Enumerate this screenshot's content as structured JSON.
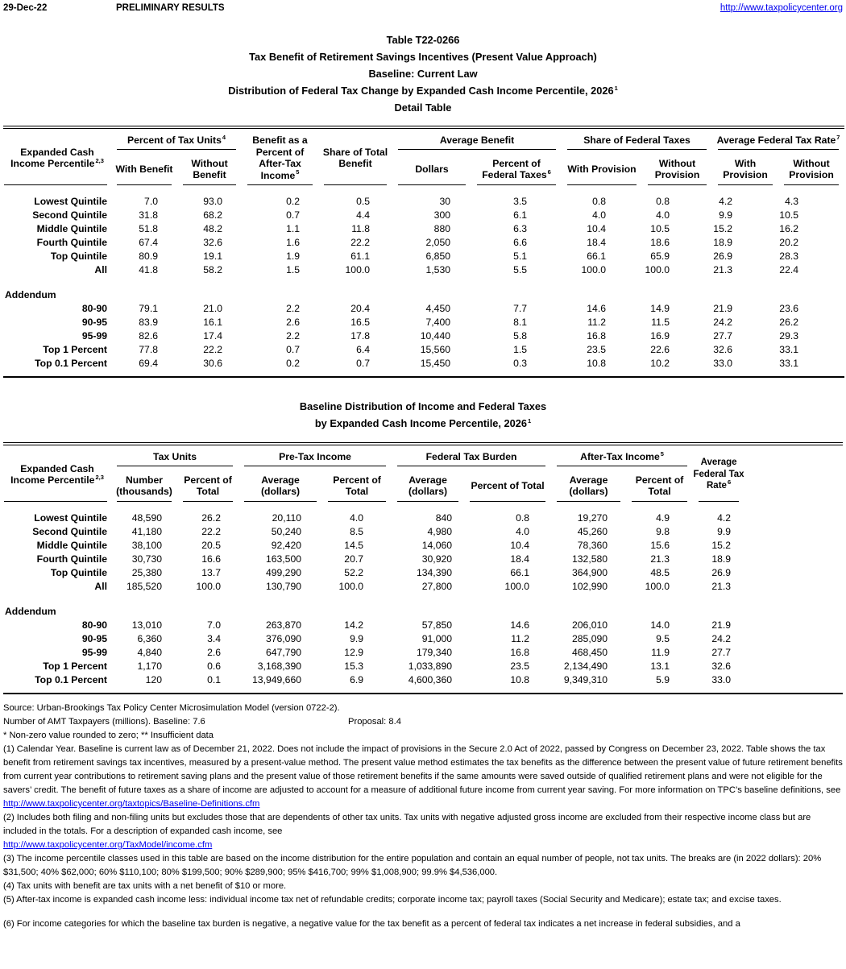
{
  "meta": {
    "date": "29-Dec-22",
    "status": "PRELIMINARY RESULTS",
    "site_link": "http://www.taxpolicycenter.org"
  },
  "titles": {
    "line1": "Table T22-0266",
    "line2": "Tax Benefit of Retirement Savings Incentives (Present Value Approach)",
    "line3": "Baseline: Current Law",
    "line4": "Distribution of Federal Tax Change by Expanded Cash Income Percentile, 2026",
    "line4_sup": "1",
    "line5": "Detail Table"
  },
  "table1": {
    "headers": {
      "percentile": "Expanded Cash Income Percentile",
      "percentile_sup": "2,3",
      "pct_tax_units": "Percent of Tax Units",
      "pct_tax_units_sup": "4",
      "with_benefit": "With Benefit",
      "without_benefit": "Without Benefit",
      "benefit_pct_ati": "Benefit as a Percent of After-Tax Income",
      "benefit_pct_ati_sup": "5",
      "share_total_benefit": "Share of Total Benefit",
      "avg_benefit": "Average Benefit",
      "dollars": "Dollars",
      "pct_federal_taxes": "Percent of Federal Taxes",
      "pct_federal_taxes_sup": "6",
      "share_federal_taxes": "Share of Federal Taxes",
      "with_provision_a": "With Provision",
      "without_provision_a": "Without Provision",
      "avg_federal_tax_rate": "Average Federal Tax Rate",
      "avg_federal_tax_rate_sup": "7",
      "with_provision_b": "With Provision",
      "without_provision_b": "Without Provision"
    },
    "rows": [
      [
        "Lowest Quintile",
        "7.0",
        "93.0",
        "0.2",
        "0.5",
        "30",
        "3.5",
        "0.8",
        "0.8",
        "4.2",
        "4.3"
      ],
      [
        "Second Quintile",
        "31.8",
        "68.2",
        "0.7",
        "4.4",
        "300",
        "6.1",
        "4.0",
        "4.0",
        "9.9",
        "10.5"
      ],
      [
        "Middle Quintile",
        "51.8",
        "48.2",
        "1.1",
        "11.8",
        "880",
        "6.3",
        "10.4",
        "10.5",
        "15.2",
        "16.2"
      ],
      [
        "Fourth Quintile",
        "67.4",
        "32.6",
        "1.6",
        "22.2",
        "2,050",
        "6.6",
        "18.4",
        "18.6",
        "18.9",
        "20.2"
      ],
      [
        "Top Quintile",
        "80.9",
        "19.1",
        "1.9",
        "61.1",
        "6,850",
        "5.1",
        "66.1",
        "65.9",
        "26.9",
        "28.3"
      ],
      [
        "All",
        "41.8",
        "58.2",
        "1.5",
        "100.0",
        "1,530",
        "5.5",
        "100.0",
        "100.0",
        "21.3",
        "22.4"
      ]
    ],
    "addendum_label": "Addendum",
    "addendum_rows": [
      [
        "80-90",
        "79.1",
        "21.0",
        "2.2",
        "20.4",
        "4,450",
        "7.7",
        "14.6",
        "14.9",
        "21.9",
        "23.6"
      ],
      [
        "90-95",
        "83.9",
        "16.1",
        "2.6",
        "16.5",
        "7,400",
        "8.1",
        "11.2",
        "11.5",
        "24.2",
        "26.2"
      ],
      [
        "95-99",
        "82.6",
        "17.4",
        "2.2",
        "17.8",
        "10,440",
        "5.8",
        "16.8",
        "16.9",
        "27.7",
        "29.3"
      ],
      [
        "Top 1 Percent",
        "77.8",
        "22.2",
        "0.7",
        "6.4",
        "15,560",
        "1.5",
        "23.5",
        "22.6",
        "32.6",
        "33.1"
      ],
      [
        "Top 0.1 Percent",
        "69.4",
        "30.6",
        "0.2",
        "0.7",
        "15,450",
        "0.3",
        "10.8",
        "10.2",
        "33.0",
        "33.1"
      ]
    ]
  },
  "table2": {
    "title1": "Baseline Distribution of Income and Federal Taxes",
    "title2": "by Expanded Cash Income Percentile, 2026",
    "title2_sup": "1",
    "headers": {
      "percentile": "Expanded Cash Income Percentile",
      "percentile_sup": "2,3",
      "tax_units": "Tax Units",
      "number_thousands": "Number (thousands)",
      "pct_total_a": "Percent of Total",
      "pre_tax_income": "Pre-Tax Income",
      "avg_dollars_a": "Average (dollars)",
      "pct_total_b": "Percent of Total",
      "federal_tax_burden": "Federal Tax Burden",
      "avg_dollars_b": "Average (dollars)",
      "pct_total_c": "Percent of Total",
      "after_tax_income": "After-Tax Income",
      "after_tax_income_sup": "5",
      "avg_dollars_c": "Average (dollars)",
      "pct_total_d": "Percent of Total",
      "avg_federal_tax_rate": "Average Federal Tax Rate",
      "avg_federal_tax_rate_sup": "6"
    },
    "rows": [
      [
        "Lowest Quintile",
        "48,590",
        "26.2",
        "20,110",
        "4.0",
        "840",
        "0.8",
        "19,270",
        "4.9",
        "4.2"
      ],
      [
        "Second Quintile",
        "41,180",
        "22.2",
        "50,240",
        "8.5",
        "4,980",
        "4.0",
        "45,260",
        "9.8",
        "9.9"
      ],
      [
        "Middle Quintile",
        "38,100",
        "20.5",
        "92,420",
        "14.5",
        "14,060",
        "10.4",
        "78,360",
        "15.6",
        "15.2"
      ],
      [
        "Fourth Quintile",
        "30,730",
        "16.6",
        "163,500",
        "20.7",
        "30,920",
        "18.4",
        "132,580",
        "21.3",
        "18.9"
      ],
      [
        "Top Quintile",
        "25,380",
        "13.7",
        "499,290",
        "52.2",
        "134,390",
        "66.1",
        "364,900",
        "48.5",
        "26.9"
      ],
      [
        "All",
        "185,520",
        "100.0",
        "130,790",
        "100.0",
        "27,800",
        "100.0",
        "102,990",
        "100.0",
        "21.3"
      ]
    ],
    "addendum_label": "Addendum",
    "addendum_rows": [
      [
        "80-90",
        "13,010",
        "7.0",
        "263,870",
        "14.2",
        "57,850",
        "14.6",
        "206,010",
        "14.0",
        "21.9"
      ],
      [
        "90-95",
        "6,360",
        "3.4",
        "376,090",
        "9.9",
        "91,000",
        "11.2",
        "285,090",
        "9.5",
        "24.2"
      ],
      [
        "95-99",
        "4,840",
        "2.6",
        "647,790",
        "12.9",
        "179,340",
        "16.8",
        "468,450",
        "11.9",
        "27.7"
      ],
      [
        "Top 1 Percent",
        "1,170",
        "0.6",
        "3,168,390",
        "15.3",
        "1,033,890",
        "23.5",
        "2,134,490",
        "13.1",
        "32.6"
      ],
      [
        "Top 0.1 Percent",
        "120",
        "0.1",
        "13,949,660",
        "6.9",
        "4,600,360",
        "10.8",
        "9,349,310",
        "5.9",
        "33.0"
      ]
    ]
  },
  "footnotes": {
    "source": "Source: Urban-Brookings Tax Policy Center Microsimulation Model (version 0722-2).",
    "amt_left": "Number of AMT Taxpayers (millions).  Baseline: 7.6",
    "amt_proposal": "Proposal: 8.4",
    "stars": "* Non-zero value rounded to zero; ** Insufficient data",
    "note1": "(1) Calendar Year. Baseline is current law as of December 21, 2022. Does not include the impact of provisions in the Secure 2.0 Act of 2022, passed by Congress on December 23, 2022. Table shows the tax benefit from retirement savings tax incentives, measured by a present-value method. The present value method estimates the tax benefits as the difference between the present value of future retirement benefits from current year contributions to retirement saving plans and the present value of those retirement benefits if the same amounts were saved outside of qualified retirement plans and were not eligible for the savers’ credit. The benefit of future taxes as a share of income are adjusted to account for a measure of additional future income from current year saving. For more information on TPC’s baseline definitions, see",
    "link1": "http://www.taxpolicycenter.org/taxtopics/Baseline-Definitions.cfm",
    "note2": "(2) Includes both filing and non-filing units but excludes those that are dependents of other tax units. Tax units with negative adjusted gross income are excluded from their respective income class but are included in the totals. For a description of expanded cash income, see",
    "link2": "http://www.taxpolicycenter.org/TaxModel/income.cfm",
    "note3": "(3) The income percentile classes used in this table are based on the income distribution for the entire population and contain an equal number of people, not tax units. The breaks are (in 2022 dollars): 20% $31,500; 40% $62,000; 60% $110,100; 80% $199,500; 90% $289,900; 95% $416,700; 99% $1,008,900; 99.9% $4,536,000.",
    "note4": "(4) Tax units with benefit are tax units with a net benefit of $10 or more.",
    "note5": "(5) After-tax income is expanded cash income less: individual income tax net of refundable credits; corporate income tax; payroll taxes (Social Security and Medicare); estate tax; and excise taxes.",
    "note6": "(6) For income categories for which the baseline tax burden is negative, a negative value for the tax benefit as a percent of federal tax indicates a net increase in federal subsidies, and a"
  }
}
